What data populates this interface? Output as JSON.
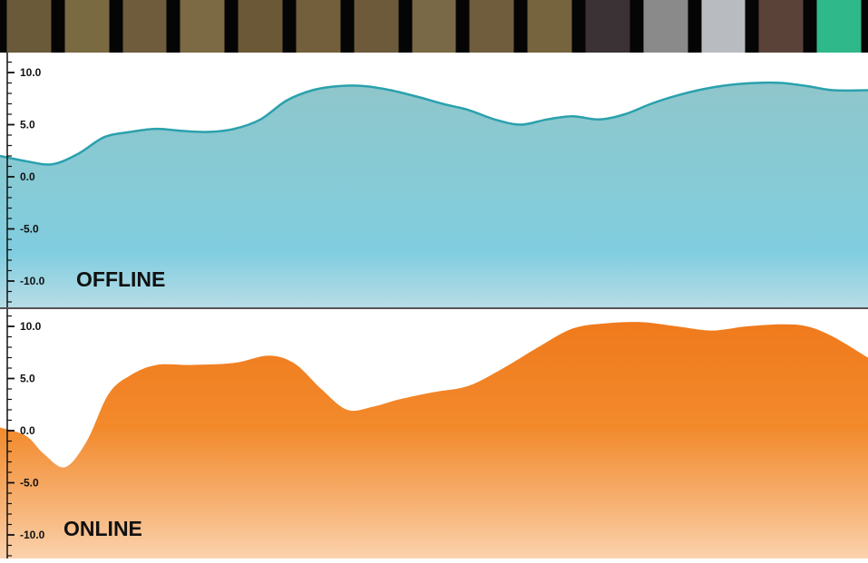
{
  "filmstrip": {
    "frames": [
      {
        "color": "#6a5a3a"
      },
      {
        "color": "#7a6a42"
      },
      {
        "color": "#6e5c3c"
      },
      {
        "color": "#7c6a44"
      },
      {
        "color": "#6a5836"
      },
      {
        "color": "#735f3c"
      },
      {
        "color": "#6c5a3a"
      },
      {
        "color": "#7a6946"
      },
      {
        "color": "#6f5d3d"
      },
      {
        "color": "#76643f"
      },
      {
        "color": "#3a3234"
      },
      {
        "color": "#8a8a8a"
      },
      {
        "color": "#b8bcc0"
      },
      {
        "color": "#5a4238"
      },
      {
        "color": "#2fb889"
      }
    ]
  },
  "chart_data": [
    {
      "type": "area",
      "label": "OFFLINE",
      "yticks": [
        "10.0",
        "5.0",
        "0.0",
        "-5.0",
        "-10.0"
      ],
      "ylim": [
        -13,
        13
      ],
      "color": "#2aa1ad",
      "x": [
        0,
        0.03,
        0.06,
        0.09,
        0.12,
        0.15,
        0.18,
        0.21,
        0.24,
        0.27,
        0.3,
        0.33,
        0.36,
        0.39,
        0.42,
        0.45,
        0.48,
        0.51,
        0.54,
        0.57,
        0.6,
        0.63,
        0.66,
        0.69,
        0.72,
        0.75,
        0.78,
        0.81,
        0.84,
        0.87,
        0.9,
        0.93,
        0.96,
        1.0
      ],
      "values": [
        2.0,
        1.5,
        1.2,
        2.2,
        3.8,
        4.3,
        4.6,
        4.4,
        4.3,
        4.6,
        5.5,
        7.3,
        8.3,
        8.7,
        8.7,
        8.3,
        7.7,
        7.0,
        6.4,
        5.5,
        5.0,
        5.5,
        5.8,
        5.5,
        6.0,
        7.0,
        7.8,
        8.4,
        8.8,
        9.0,
        9.0,
        8.7,
        8.3,
        8.3
      ]
    },
    {
      "type": "area",
      "label": "ONLINE",
      "yticks": [
        "10.0",
        "5.0",
        "0.0",
        "-5.0",
        "-10.0"
      ],
      "ylim": [
        -13,
        13
      ],
      "color": "#f28020",
      "x": [
        0,
        0.03,
        0.05,
        0.075,
        0.1,
        0.125,
        0.15,
        0.18,
        0.22,
        0.27,
        0.31,
        0.34,
        0.37,
        0.4,
        0.43,
        0.46,
        0.5,
        0.54,
        0.58,
        0.62,
        0.66,
        0.7,
        0.74,
        0.78,
        0.82,
        0.86,
        0.9,
        0.93,
        0.96,
        1.0
      ],
      "values": [
        0.3,
        -0.5,
        -2.2,
        -3.5,
        -1.0,
        3.5,
        5.3,
        6.3,
        6.3,
        6.5,
        7.2,
        6.4,
        4.0,
        2.0,
        2.3,
        3.0,
        3.7,
        4.3,
        6.0,
        8.0,
        9.8,
        10.3,
        10.4,
        10.0,
        9.6,
        10.0,
        10.2,
        10.0,
        9.0,
        7.0
      ]
    }
  ]
}
